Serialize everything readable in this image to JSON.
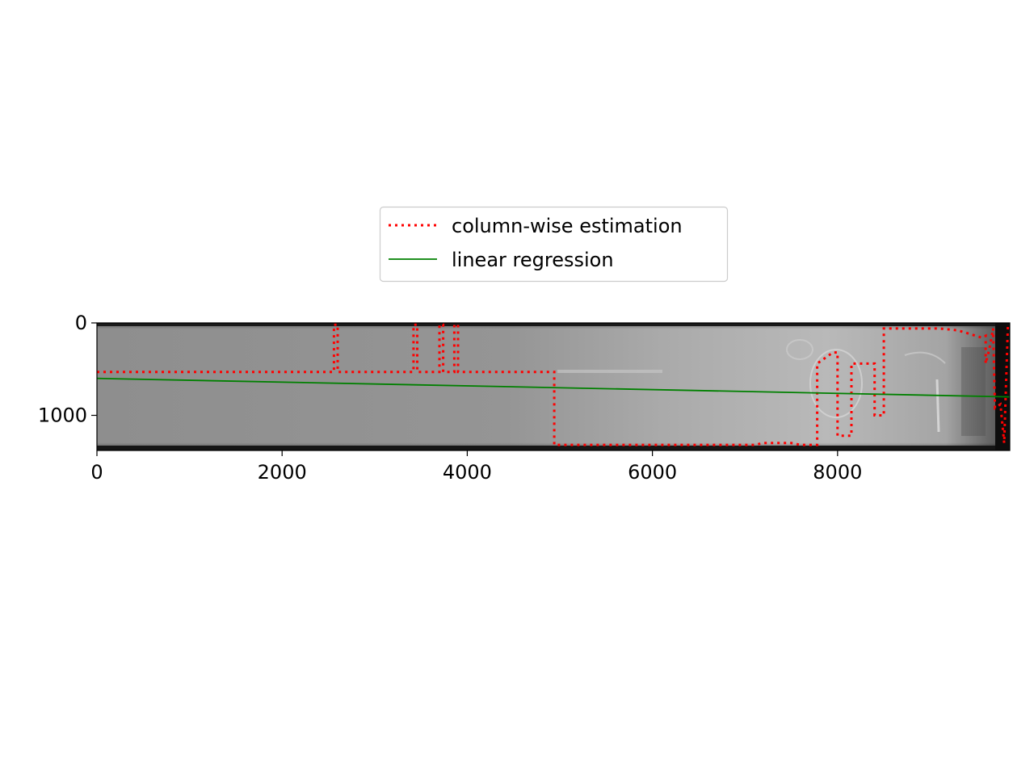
{
  "chart_data": {
    "type": "line",
    "title": "",
    "xlabel": "",
    "ylabel": "",
    "xlim": [
      0,
      9860
    ],
    "ylim": [
      1380,
      0
    ],
    "y_inverted": true,
    "x_ticks": [
      0,
      2000,
      4000,
      6000,
      8000
    ],
    "x_tick_labels": [
      "0",
      "2000",
      "4000",
      "6000",
      "8000"
    ],
    "y_ticks": [
      0,
      1000
    ],
    "y_tick_labels": [
      "0",
      "1000"
    ],
    "grid": false,
    "background": "grayscale-image",
    "legend": {
      "placement": "top-center"
    },
    "series": [
      {
        "name": "column-wise estimation",
        "style": "dotted",
        "color": "#ff0000",
        "points": [
          [
            0,
            530
          ],
          [
            2560,
            530
          ],
          [
            2560,
            20
          ],
          [
            2600,
            20
          ],
          [
            2600,
            530
          ],
          [
            3420,
            530
          ],
          [
            3420,
            20
          ],
          [
            3460,
            20
          ],
          [
            3460,
            530
          ],
          [
            3700,
            530
          ],
          [
            3700,
            20
          ],
          [
            3740,
            20
          ],
          [
            3740,
            530
          ],
          [
            3860,
            530
          ],
          [
            3860,
            20
          ],
          [
            3900,
            20
          ],
          [
            3900,
            530
          ],
          [
            4940,
            530
          ],
          [
            4940,
            1320
          ],
          [
            7100,
            1320
          ],
          [
            7200,
            1300
          ],
          [
            7500,
            1300
          ],
          [
            7600,
            1320
          ],
          [
            7780,
            1320
          ],
          [
            7780,
            440
          ],
          [
            7950,
            320
          ],
          [
            8000,
            320
          ],
          [
            8000,
            1220
          ],
          [
            8150,
            1220
          ],
          [
            8150,
            440
          ],
          [
            8400,
            440
          ],
          [
            8400,
            1000
          ],
          [
            8500,
            1000
          ],
          [
            8500,
            60
          ],
          [
            9100,
            60
          ],
          [
            9300,
            80
          ],
          [
            9560,
            160
          ],
          [
            9600,
            140
          ],
          [
            9600,
            440
          ],
          [
            9640,
            280
          ],
          [
            9680,
            60
          ],
          [
            9700,
            920
          ],
          [
            9760,
            880
          ],
          [
            9800,
            1300
          ],
          [
            9840,
            20
          ]
        ]
      },
      {
        "name": "linear regression",
        "style": "solid",
        "color": "#008000",
        "points": [
          [
            0,
            600
          ],
          [
            9860,
            800
          ]
        ]
      }
    ]
  }
}
